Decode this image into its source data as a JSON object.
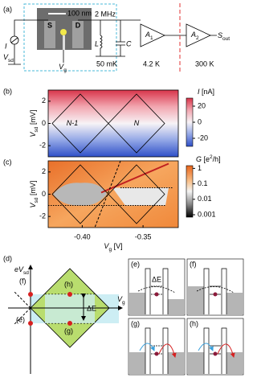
{
  "panel_a": {
    "label": "(a)",
    "scale_bar": "100 nm",
    "source": "S",
    "drain": "D",
    "frequency": "2 MHz",
    "current": "I",
    "bias": {
      "base": "V",
      "sub": "sd"
    },
    "inductor": "L",
    "capacitor": "C",
    "gate": {
      "base": "V",
      "sub": "g"
    },
    "temp_sample": "50 mK",
    "temp_amp1": "4.2 K",
    "temp_room": "300 K",
    "amp1": {
      "base": "A",
      "sub": "1"
    },
    "amp2": {
      "base": "A",
      "sub": "2"
    },
    "output": {
      "base": "S",
      "sub": "out"
    }
  },
  "chart_data": [
    {
      "type": "heatmap",
      "label": "(b)",
      "y_label": {
        "base": "V",
        "sub": "sd",
        "unit": " [mV]"
      },
      "ylim": [
        -3,
        3
      ],
      "yticks": [
        -2,
        0,
        2
      ],
      "regions": [
        "N-1",
        "N"
      ],
      "colorbar": {
        "label": {
          "base": "I",
          "unit": " [nA]"
        },
        "lim": [
          -30,
          30
        ],
        "ticks": [
          -20,
          0,
          20
        ]
      }
    },
    {
      "type": "heatmap",
      "label": "(c)",
      "y_label": {
        "base": "V",
        "sub": "sd",
        "unit": " [mV]"
      },
      "x_label": {
        "base": "V",
        "sub": "g",
        "unit": " [V]"
      },
      "ylim": [
        -3,
        3
      ],
      "yticks": [
        -2,
        0,
        2
      ],
      "xlim": [
        -0.428,
        -0.321
      ],
      "xticks": [
        {
          "value": -0.4,
          "label": "-0.40"
        },
        {
          "value": -0.35,
          "label": "-0.35"
        }
      ],
      "colorbar": {
        "label": {
          "base": "G",
          "unit": " [e",
          "sup": "2",
          "tail": "/h]"
        },
        "scale": "log",
        "lim": [
          0.0007,
          1.5
        ],
        "ticks": [
          1,
          0.1,
          0.01,
          0.001
        ]
      }
    }
  ],
  "panel_d": {
    "label": "(d)",
    "y_axis": {
      "base": "eV",
      "sub": "sd"
    },
    "x_axis": {
      "base": "V",
      "sub": "g"
    },
    "points": [
      "(f)",
      "(h)",
      "(e)",
      "(g)"
    ],
    "gap": "ΔE"
  },
  "panels_efgh": [
    {
      "label": "(e)",
      "gap": "ΔE"
    },
    {
      "label": "(f)"
    },
    {
      "label": "(g)"
    },
    {
      "label": "(h)"
    }
  ]
}
